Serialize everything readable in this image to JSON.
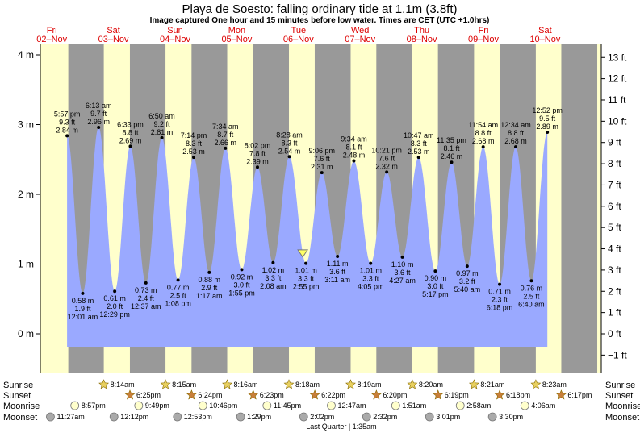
{
  "chart_data": {
    "type": "area",
    "title": "Playa de Soesto: falling  ordinary tide at 1.1m (3.8ft)",
    "subtitle": "Image captured One hour and 15 minutes before low water. Times are CET (UTC +1.0hrs)",
    "ylim_m": [
      -0.2,
      4.1
    ],
    "y_ticks_m": [
      {
        "v": 0,
        "label": "0 m"
      },
      {
        "v": 1,
        "label": "1 m"
      },
      {
        "v": 2,
        "label": "2 m"
      },
      {
        "v": 3,
        "label": "3 m"
      },
      {
        "v": 4,
        "label": "4 m"
      }
    ],
    "y_ticks_ft": [
      {
        "v": -1,
        "label": "−1 ft"
      },
      {
        "v": 0,
        "label": "0 ft"
      },
      {
        "v": 1,
        "label": "1 ft"
      },
      {
        "v": 2,
        "label": "2 ft"
      },
      {
        "v": 3,
        "label": "3 ft"
      },
      {
        "v": 4,
        "label": "4 ft"
      },
      {
        "v": 5,
        "label": "5 ft"
      },
      {
        "v": 6,
        "label": "6 ft"
      },
      {
        "v": 7,
        "label": "7 ft"
      },
      {
        "v": 8,
        "label": "8 ft"
      },
      {
        "v": 9,
        "label": "9 ft"
      },
      {
        "v": 10,
        "label": "10 ft"
      },
      {
        "v": 11,
        "label": "11 ft"
      },
      {
        "v": 12,
        "label": "12 ft"
      },
      {
        "v": 13,
        "label": "13 ft"
      }
    ],
    "days": [
      {
        "name": "Fri",
        "date": "02–Nov"
      },
      {
        "name": "Sat",
        "date": "03–Nov"
      },
      {
        "name": "Sun",
        "date": "04–Nov"
      },
      {
        "name": "Mon",
        "date": "05–Nov"
      },
      {
        "name": "Tue",
        "date": "06–Nov"
      },
      {
        "name": "Wed",
        "date": "07–Nov"
      },
      {
        "name": "Thu",
        "date": "08–Nov"
      },
      {
        "name": "Fri",
        "date": "09–Nov"
      },
      {
        "name": "Sat",
        "date": "10–Nov"
      }
    ],
    "tides": [
      {
        "day": 0,
        "time": "5:57 pm",
        "m": 2.84,
        "ft": "9.3 ft",
        "type": "high"
      },
      {
        "day": 1,
        "time": "12:01 am",
        "m": 0.58,
        "ft": "1.9 ft",
        "type": "low"
      },
      {
        "day": 1,
        "time": "6:13 am",
        "m": 2.96,
        "ft": "9.7 ft",
        "type": "high"
      },
      {
        "day": 1,
        "time": "12:29 pm",
        "m": 0.61,
        "ft": "2.0 ft",
        "type": "low"
      },
      {
        "day": 1,
        "time": "6:33 pm",
        "m": 2.69,
        "ft": "8.8 ft",
        "type": "high"
      },
      {
        "day": 2,
        "time": "12:37 am",
        "m": 0.73,
        "ft": "2.4 ft",
        "type": "low"
      },
      {
        "day": 2,
        "time": "6:50 am",
        "m": 2.81,
        "ft": "9.2 ft",
        "type": "high"
      },
      {
        "day": 2,
        "time": "1:08 pm",
        "m": 0.77,
        "ft": "2.5 ft",
        "type": "low"
      },
      {
        "day": 2,
        "time": "7:14 pm",
        "m": 2.53,
        "ft": "8.3 ft",
        "type": "high"
      },
      {
        "day": 3,
        "time": "1:17 am",
        "m": 0.88,
        "ft": "2.9 ft",
        "type": "low"
      },
      {
        "day": 3,
        "time": "7:34 am",
        "m": 2.66,
        "ft": "8.7 ft",
        "type": "high"
      },
      {
        "day": 3,
        "time": "1:55 pm",
        "m": 0.92,
        "ft": "3.0 ft",
        "type": "low"
      },
      {
        "day": 3,
        "time": "8:02 pm",
        "m": 2.39,
        "ft": "7.8 ft",
        "type": "high"
      },
      {
        "day": 4,
        "time": "2:08 am",
        "m": 1.02,
        "ft": "3.3 ft",
        "type": "low"
      },
      {
        "day": 4,
        "time": "8:28 am",
        "m": 2.54,
        "ft": "8.3 ft",
        "type": "high"
      },
      {
        "day": 4,
        "time": "2:55 pm",
        "m": 1.01,
        "ft": "3.3 ft",
        "type": "low"
      },
      {
        "day": 4,
        "time": "9:06 pm",
        "m": 2.31,
        "ft": "7.6 ft",
        "type": "high"
      },
      {
        "day": 5,
        "time": "3:11 am",
        "m": 1.11,
        "ft": "3.6 ft",
        "type": "low"
      },
      {
        "day": 5,
        "time": "9:34 am",
        "m": 2.48,
        "ft": "8.1 ft",
        "type": "high"
      },
      {
        "day": 5,
        "time": "4:05 pm",
        "m": 1.01,
        "ft": "3.3 ft",
        "type": "low"
      },
      {
        "day": 5,
        "time": "10:21 pm",
        "m": 2.32,
        "ft": "7.6 ft",
        "type": "high"
      },
      {
        "day": 6,
        "time": "4:27 am",
        "m": 1.1,
        "ft": "3.6 ft",
        "type": "low"
      },
      {
        "day": 6,
        "time": "10:47 am",
        "m": 2.53,
        "ft": "8.3 ft",
        "type": "high"
      },
      {
        "day": 6,
        "time": "5:17 pm",
        "m": 0.9,
        "ft": "3.0 ft",
        "type": "low"
      },
      {
        "day": 6,
        "time": "11:35 pm",
        "m": 2.46,
        "ft": "8.1 ft",
        "type": "high"
      },
      {
        "day": 7,
        "time": "5:40 am",
        "m": 0.97,
        "ft": "3.2 ft",
        "type": "low"
      },
      {
        "day": 7,
        "time": "11:54 am",
        "m": 2.68,
        "ft": "8.8 ft",
        "type": "high"
      },
      {
        "day": 7,
        "time": "6:18 pm",
        "m": 0.71,
        "ft": "2.3 ft",
        "type": "low"
      },
      {
        "day": 8,
        "time": "12:34 am",
        "m": 2.68,
        "ft": "8.8 ft",
        "type": "high"
      },
      {
        "day": 8,
        "time": "6:40 am",
        "m": 0.76,
        "ft": "2.5 ft",
        "type": "low"
      },
      {
        "day": 8,
        "time": "12:52 pm",
        "m": 2.89,
        "ft": "9.5 ft",
        "type": "high"
      }
    ],
    "current": {
      "day": 4,
      "time": "1:40 pm",
      "m": 1.1
    },
    "sunrise": [
      "8:14am",
      "8:15am",
      "8:16am",
      "8:18am",
      "8:19am",
      "8:20am",
      "8:21am",
      "8:23am"
    ],
    "sunset": [
      "6:25pm",
      "6:24pm",
      "6:23pm",
      "6:22pm",
      "6:20pm",
      "6:19pm",
      "6:18pm",
      "6:17pm"
    ],
    "moonrise": [
      "8:57pm",
      "9:49pm",
      "10:46pm",
      "11:45pm",
      "12:47am",
      "1:51am",
      "2:58am",
      "4:06am"
    ],
    "moonset": [
      "11:27am",
      "12:12pm",
      "12:53pm",
      "1:29pm",
      "2:02pm",
      "2:32pm",
      "3:01pm",
      "3:30pm"
    ],
    "row_labels": {
      "sunrise": "Sunrise",
      "sunset": "Sunset",
      "moonrise": "Moonrise",
      "moonset": "Moonset"
    },
    "moon_phase": "Last Quarter | 1:35am",
    "colors": {
      "day": "#ffffcc",
      "night": "#999999",
      "water": "#9aa9ff",
      "day_label": "#dd0000"
    }
  }
}
